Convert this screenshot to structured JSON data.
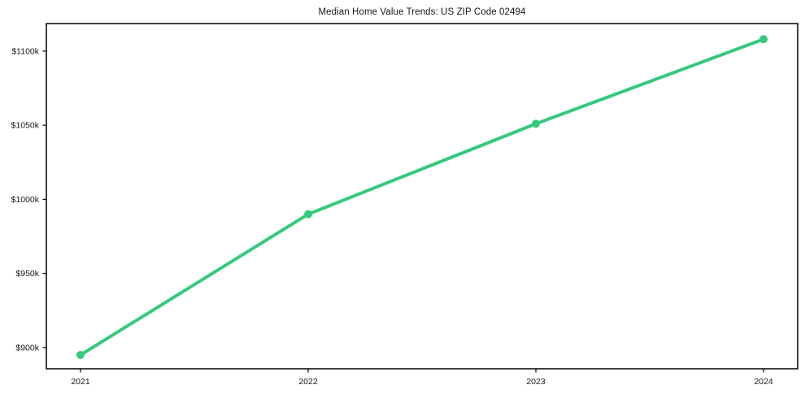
{
  "chart_data": {
    "type": "line",
    "title": "Median Home Value Trends: US ZIP Code 02494",
    "xlabel": "",
    "ylabel": "",
    "x": [
      2021,
      2022,
      2023,
      2024
    ],
    "values_usd_thousands": [
      895,
      990,
      1051,
      1108
    ],
    "x_tick_labels": [
      "2021",
      "2022",
      "2023",
      "2024"
    ],
    "y_ticks": [
      900,
      950,
      1000,
      1050,
      1100
    ],
    "y_tick_labels": [
      "$900k",
      "$950k",
      "$1000k",
      "$1050k",
      "$1100k"
    ],
    "xlim": [
      2020.85,
      2024.15
    ],
    "ylim": [
      885.7,
      1118.6
    ],
    "grid": false,
    "legend": false,
    "marker": "circle",
    "line_color": "#35c97d",
    "text_color": "#161616",
    "frame_color": "#000000",
    "background_color": "#ffffff"
  }
}
